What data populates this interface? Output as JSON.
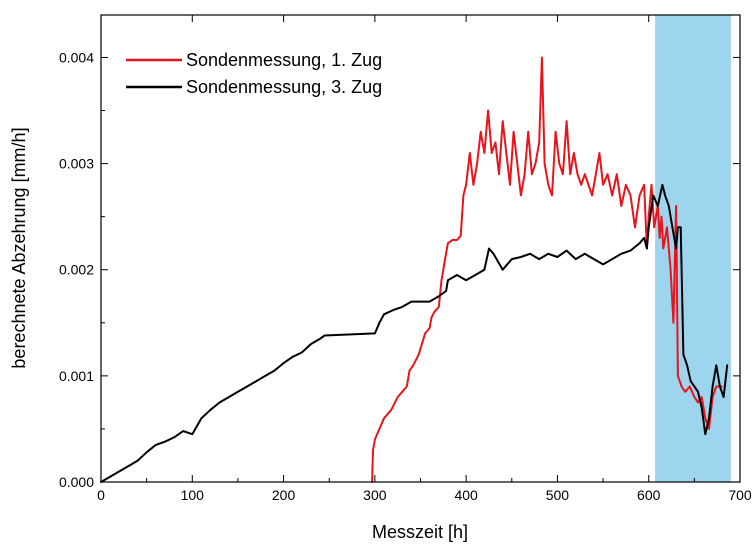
{
  "chart_data": {
    "type": "line",
    "xlabel": "Messzeit [h]",
    "ylabel": "berechnete Abzehrung [mm/h]",
    "xlim": [
      0,
      700
    ],
    "ylim": [
      0,
      0.0044
    ],
    "xticks": [
      {
        "v": 0,
        "label": "0"
      },
      {
        "v": 100,
        "label": "100"
      },
      {
        "v": 200,
        "label": "200"
      },
      {
        "v": 300,
        "label": "300"
      },
      {
        "v": 400,
        "label": "400"
      },
      {
        "v": 500,
        "label": "500"
      },
      {
        "v": 600,
        "label": "600"
      },
      {
        "v": 700,
        "label": "700"
      }
    ],
    "yticks": [
      {
        "v": 0,
        "label": "0.000"
      },
      {
        "v": 0.001,
        "label": "0.001"
      },
      {
        "v": 0.002,
        "label": "0.002"
      },
      {
        "v": 0.003,
        "label": "0.003"
      },
      {
        "v": 0.004,
        "label": "0.004"
      }
    ],
    "grid": false,
    "legend_position": "top-left",
    "shaded_region": {
      "x_start": 607,
      "x_end": 690,
      "color": "#9dd5ef"
    },
    "series": [
      {
        "name": "Sondenmessung, 1. Zug",
        "color": "#e8141b",
        "points": [
          [
            297,
            0.0
          ],
          [
            298,
            0.0003
          ],
          [
            300,
            0.0004
          ],
          [
            305,
            0.0005
          ],
          [
            310,
            0.0006
          ],
          [
            318,
            0.00068
          ],
          [
            325,
            0.0008
          ],
          [
            330,
            0.00085
          ],
          [
            335,
            0.0009
          ],
          [
            338,
            0.00105
          ],
          [
            342,
            0.0011
          ],
          [
            348,
            0.0012
          ],
          [
            355,
            0.0014
          ],
          [
            360,
            0.00145
          ],
          [
            362,
            0.00155
          ],
          [
            365,
            0.0016
          ],
          [
            370,
            0.00165
          ],
          [
            373,
            0.0019
          ],
          [
            377,
            0.0021
          ],
          [
            380,
            0.00225
          ],
          [
            385,
            0.00228
          ],
          [
            390,
            0.00228
          ],
          [
            394,
            0.00232
          ],
          [
            397,
            0.0027
          ],
          [
            400,
            0.0028
          ],
          [
            404,
            0.0031
          ],
          [
            408,
            0.0028
          ],
          [
            412,
            0.003
          ],
          [
            416,
            0.0033
          ],
          [
            420,
            0.0031
          ],
          [
            424,
            0.0035
          ],
          [
            428,
            0.0031
          ],
          [
            432,
            0.0032
          ],
          [
            436,
            0.0029
          ],
          [
            440,
            0.0034
          ],
          [
            444,
            0.0031
          ],
          [
            448,
            0.0028
          ],
          [
            452,
            0.0033
          ],
          [
            456,
            0.003
          ],
          [
            460,
            0.0027
          ],
          [
            464,
            0.0029
          ],
          [
            468,
            0.0033
          ],
          [
            472,
            0.0029
          ],
          [
            476,
            0.003
          ],
          [
            480,
            0.0032
          ],
          [
            483,
            0.004
          ],
          [
            486,
            0.003
          ],
          [
            490,
            0.0028
          ],
          [
            494,
            0.0027
          ],
          [
            498,
            0.0033
          ],
          [
            502,
            0.003
          ],
          [
            506,
            0.0029
          ],
          [
            510,
            0.0034
          ],
          [
            514,
            0.0029
          ],
          [
            518,
            0.0031
          ],
          [
            522,
            0.0029
          ],
          [
            526,
            0.0028
          ],
          [
            530,
            0.0029
          ],
          [
            534,
            0.0028
          ],
          [
            538,
            0.0027
          ],
          [
            542,
            0.0029
          ],
          [
            546,
            0.0031
          ],
          [
            550,
            0.0028
          ],
          [
            555,
            0.0029
          ],
          [
            560,
            0.0027
          ],
          [
            565,
            0.0029
          ],
          [
            570,
            0.0026
          ],
          [
            575,
            0.0028
          ],
          [
            580,
            0.0027
          ],
          [
            585,
            0.0024
          ],
          [
            590,
            0.0027
          ],
          [
            595,
            0.0028
          ],
          [
            598,
            0.0022
          ],
          [
            600,
            0.0025
          ],
          [
            603,
            0.0028
          ],
          [
            606,
            0.0024
          ],
          [
            610,
            0.0026
          ],
          [
            612,
            0.0023
          ],
          [
            614,
            0.0025
          ],
          [
            616,
            0.0022
          ],
          [
            620,
            0.0024
          ],
          [
            624,
            0.002
          ],
          [
            627,
            0.0015
          ],
          [
            630,
            0.0026
          ],
          [
            632,
            0.001
          ],
          [
            636,
            0.0009
          ],
          [
            640,
            0.00085
          ],
          [
            645,
            0.0009
          ],
          [
            650,
            0.0008
          ],
          [
            654,
            0.00075
          ],
          [
            658,
            0.0008
          ],
          [
            662,
            0.0006
          ],
          [
            666,
            0.0005
          ],
          [
            670,
            0.0008
          ],
          [
            674,
            0.0009
          ],
          [
            680,
            0.0009
          ]
        ]
      },
      {
        "name": "Sondenmessung, 3. Zug",
        "color": "#000000",
        "points": [
          [
            0,
            0.0
          ],
          [
            10,
            5e-05
          ],
          [
            20,
            0.0001
          ],
          [
            30,
            0.00015
          ],
          [
            40,
            0.0002
          ],
          [
            50,
            0.00028
          ],
          [
            60,
            0.00035
          ],
          [
            70,
            0.00038
          ],
          [
            80,
            0.00042
          ],
          [
            90,
            0.00048
          ],
          [
            100,
            0.00045
          ],
          [
            110,
            0.0006
          ],
          [
            120,
            0.00068
          ],
          [
            130,
            0.00075
          ],
          [
            140,
            0.0008
          ],
          [
            150,
            0.00085
          ],
          [
            160,
            0.0009
          ],
          [
            170,
            0.00095
          ],
          [
            180,
            0.001
          ],
          [
            190,
            0.00105
          ],
          [
            200,
            0.00112
          ],
          [
            210,
            0.00118
          ],
          [
            220,
            0.00122
          ],
          [
            230,
            0.0013
          ],
          [
            240,
            0.00135
          ],
          [
            245,
            0.00138
          ],
          [
            300,
            0.0014
          ],
          [
            305,
            0.0015
          ],
          [
            310,
            0.00158
          ],
          [
            320,
            0.00162
          ],
          [
            330,
            0.00165
          ],
          [
            340,
            0.0017
          ],
          [
            350,
            0.0017
          ],
          [
            360,
            0.0017
          ],
          [
            370,
            0.00175
          ],
          [
            378,
            0.0018
          ],
          [
            380,
            0.0019
          ],
          [
            390,
            0.00195
          ],
          [
            400,
            0.0019
          ],
          [
            410,
            0.00195
          ],
          [
            420,
            0.002
          ],
          [
            425,
            0.0022
          ],
          [
            430,
            0.00215
          ],
          [
            440,
            0.002
          ],
          [
            450,
            0.0021
          ],
          [
            460,
            0.00212
          ],
          [
            470,
            0.00215
          ],
          [
            480,
            0.0021
          ],
          [
            490,
            0.00215
          ],
          [
            500,
            0.00212
          ],
          [
            510,
            0.00218
          ],
          [
            520,
            0.0021
          ],
          [
            530,
            0.00215
          ],
          [
            540,
            0.0021
          ],
          [
            550,
            0.00205
          ],
          [
            560,
            0.0021
          ],
          [
            570,
            0.00215
          ],
          [
            580,
            0.00218
          ],
          [
            590,
            0.00225
          ],
          [
            595,
            0.0023
          ],
          [
            598,
            0.0022
          ],
          [
            600,
            0.0024
          ],
          [
            605,
            0.0027
          ],
          [
            610,
            0.0026
          ],
          [
            615,
            0.0028
          ],
          [
            618,
            0.0027
          ],
          [
            622,
            0.0026
          ],
          [
            626,
            0.0024
          ],
          [
            630,
            0.0022
          ],
          [
            632,
            0.0024
          ],
          [
            635,
            0.0024
          ],
          [
            638,
            0.0012
          ],
          [
            642,
            0.0011
          ],
          [
            646,
            0.00095
          ],
          [
            650,
            0.0009
          ],
          [
            654,
            0.00085
          ],
          [
            658,
            0.0007
          ],
          [
            662,
            0.00045
          ],
          [
            666,
            0.0006
          ],
          [
            670,
            0.0009
          ],
          [
            674,
            0.0011
          ],
          [
            678,
            0.0009
          ],
          [
            682,
            0.0008
          ],
          [
            686,
            0.0011
          ]
        ]
      }
    ]
  }
}
